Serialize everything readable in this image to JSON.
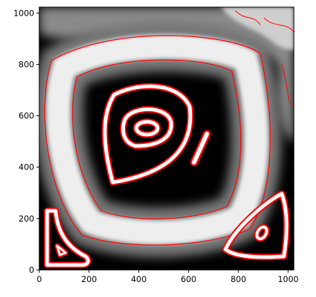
{
  "chart_data": {
    "type": "image",
    "xlim": [
      0,
      1023
    ],
    "ylim": [
      0,
      1023
    ],
    "xticks": [
      0,
      200,
      400,
      600,
      800,
      1000
    ],
    "yticks": [
      0,
      200,
      400,
      600,
      800,
      1000
    ],
    "contour_color": "#ff0000"
  }
}
